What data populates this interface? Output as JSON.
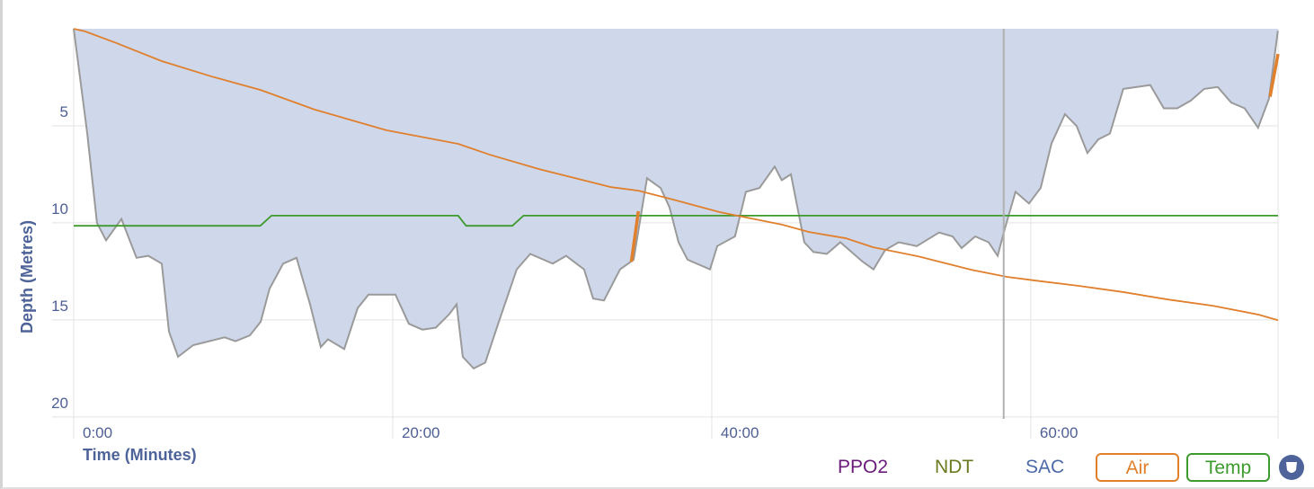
{
  "chart_data": {
    "type": "area",
    "xlabel": "Time (Minutes)",
    "ylabel": "Depth (Metres)",
    "xlim": [
      0,
      75.5
    ],
    "ylim": [
      20.1,
      0
    ],
    "y_inverted": true,
    "grid": true,
    "x_ticks": [
      {
        "v": 0,
        "label": "0:00"
      },
      {
        "v": 20,
        "label": "20:00"
      },
      {
        "v": 40,
        "label": "40:00"
      },
      {
        "v": 60,
        "label": "60:00"
      }
    ],
    "y_ticks": [
      {
        "v": 5,
        "label": "5"
      },
      {
        "v": 10,
        "label": "10"
      },
      {
        "v": 15,
        "label": "15"
      },
      {
        "v": 20,
        "label": "20"
      }
    ],
    "colors": {
      "depth_fill": "#cfd8eb",
      "depth_line": "#9a9a9a",
      "air": "#e07f2c",
      "temp": "#3d9a2c",
      "grid": "#e3e3e3",
      "cursor": "#b0b0b0"
    },
    "depth": [
      [
        0,
        0
      ],
      [
        0.85,
        5.4
      ],
      [
        1.46,
        10.0
      ],
      [
        2.03,
        10.9
      ],
      [
        2.99,
        9.8
      ],
      [
        3.94,
        11.8
      ],
      [
        4.68,
        11.7
      ],
      [
        5.52,
        12.1
      ],
      [
        5.97,
        15.6
      ],
      [
        6.54,
        16.9
      ],
      [
        7.49,
        16.3
      ],
      [
        9.46,
        15.9
      ],
      [
        10.14,
        16.1
      ],
      [
        11.04,
        15.8
      ],
      [
        11.72,
        15.1
      ],
      [
        12.28,
        13.4
      ],
      [
        13.13,
        12.1
      ],
      [
        13.97,
        11.8
      ],
      [
        14.82,
        14.2
      ],
      [
        15.49,
        16.4
      ],
      [
        15.94,
        16.0
      ],
      [
        16.96,
        16.5
      ],
      [
        17.8,
        14.4
      ],
      [
        18.48,
        13.7
      ],
      [
        20.17,
        13.7
      ],
      [
        21.01,
        15.2
      ],
      [
        21.86,
        15.5
      ],
      [
        22.7,
        15.4
      ],
      [
        23.55,
        14.7
      ],
      [
        24.0,
        14.2
      ],
      [
        24.39,
        16.9
      ],
      [
        25.07,
        17.5
      ],
      [
        25.8,
        17.2
      ],
      [
        26.65,
        15.1
      ],
      [
        27.77,
        12.4
      ],
      [
        28.62,
        11.6
      ],
      [
        30.03,
        12.1
      ],
      [
        30.87,
        11.7
      ],
      [
        32.0,
        12.4
      ],
      [
        32.56,
        13.9
      ],
      [
        33.24,
        14.0
      ],
      [
        34.25,
        12.4
      ],
      [
        35.1,
        11.9
      ],
      [
        35.94,
        7.7
      ],
      [
        36.79,
        8.2
      ],
      [
        37.35,
        9.2
      ],
      [
        37.92,
        11.0
      ],
      [
        38.48,
        11.9
      ],
      [
        39.89,
        12.4
      ],
      [
        40.34,
        11.2
      ],
      [
        41.46,
        10.7
      ],
      [
        42.14,
        8.4
      ],
      [
        42.99,
        8.2
      ],
      [
        43.94,
        7.1
      ],
      [
        44.39,
        7.8
      ],
      [
        44.96,
        7.5
      ],
      [
        45.8,
        11.0
      ],
      [
        46.37,
        11.5
      ],
      [
        47.21,
        11.6
      ],
      [
        48.06,
        11.0
      ],
      [
        49.46,
        12.0
      ],
      [
        50.14,
        12.4
      ],
      [
        50.87,
        11.4
      ],
      [
        51.72,
        11.0
      ],
      [
        52.85,
        11.2
      ],
      [
        54.25,
        10.5
      ],
      [
        55.1,
        10.7
      ],
      [
        55.66,
        11.3
      ],
      [
        56.51,
        10.7
      ],
      [
        57.35,
        11.0
      ],
      [
        57.92,
        11.7
      ],
      [
        58.37,
        10.3
      ],
      [
        59.04,
        8.4
      ],
      [
        59.89,
        9.0
      ],
      [
        60.62,
        8.2
      ],
      [
        61.3,
        5.9
      ],
      [
        62.14,
        4.4
      ],
      [
        62.87,
        5.0
      ],
      [
        63.55,
        6.4
      ],
      [
        64.23,
        5.7
      ],
      [
        64.96,
        5.4
      ],
      [
        65.8,
        3.1
      ],
      [
        66.65,
        3.0
      ],
      [
        67.49,
        2.9
      ],
      [
        68.34,
        4.1
      ],
      [
        69.18,
        4.1
      ],
      [
        70.03,
        3.7
      ],
      [
        70.87,
        3.1
      ],
      [
        71.72,
        3.0
      ],
      [
        72.56,
        3.8
      ],
      [
        73.41,
        4.1
      ],
      [
        74.25,
        5.1
      ],
      [
        74.93,
        3.6
      ],
      [
        75.49,
        0.1
      ]
    ],
    "air_pressure_percent": [
      [
        0,
        100
      ],
      [
        0.73,
        99.3
      ],
      [
        2.7,
        96.3
      ],
      [
        5.52,
        91.7
      ],
      [
        8.62,
        87.8
      ],
      [
        11.72,
        84.3
      ],
      [
        15.1,
        79.3
      ],
      [
        19.6,
        74
      ],
      [
        24.1,
        70.5
      ],
      [
        26.1,
        67.7
      ],
      [
        29.2,
        64
      ],
      [
        33.7,
        59.4
      ],
      [
        35.4,
        58.5
      ],
      [
        37.6,
        56.2
      ],
      [
        40.5,
        53
      ],
      [
        44.4,
        49.8
      ],
      [
        46.1,
        47.9
      ],
      [
        48.4,
        46.3
      ],
      [
        50.1,
        44
      ],
      [
        52.9,
        41.7
      ],
      [
        56.3,
        38.2
      ],
      [
        58.5,
        36.4
      ],
      [
        60.2,
        35.5
      ],
      [
        63.0,
        34.1
      ],
      [
        65.8,
        32.5
      ],
      [
        68.6,
        30.6
      ],
      [
        71.4,
        29
      ],
      [
        74.3,
        26.7
      ],
      [
        75.5,
        25.3
      ]
    ],
    "air_gas_change_segments": [
      [
        [
          34.96,
          12.0
        ],
        [
          35.4,
          9.4
        ]
      ],
      [
        [
          75.0,
          3.5
        ],
        [
          75.5,
          1.3
        ]
      ]
    ],
    "temperature_percent": [
      [
        0,
        49.5
      ],
      [
        11.7,
        49.5
      ],
      [
        12.4,
        52.1
      ],
      [
        24.1,
        52.1
      ],
      [
        24.6,
        49.5
      ],
      [
        27.5,
        49.5
      ],
      [
        28.2,
        52.1
      ],
      [
        75.5,
        52.1
      ]
    ],
    "cursor_time": 58.3
  },
  "legend": {
    "ppo2": {
      "label": "PPO2",
      "color": "#6a1b7a"
    },
    "ndt": {
      "label": "NDT",
      "color": "#6b7a1f"
    },
    "sac": {
      "label": "SAC",
      "color": "#4d6aa8"
    },
    "air": {
      "label": "Air",
      "color": "#e07f2c"
    },
    "temp": {
      "label": "Temp",
      "color": "#3d9a2c"
    },
    "shield_icon": "shield-icon"
  }
}
